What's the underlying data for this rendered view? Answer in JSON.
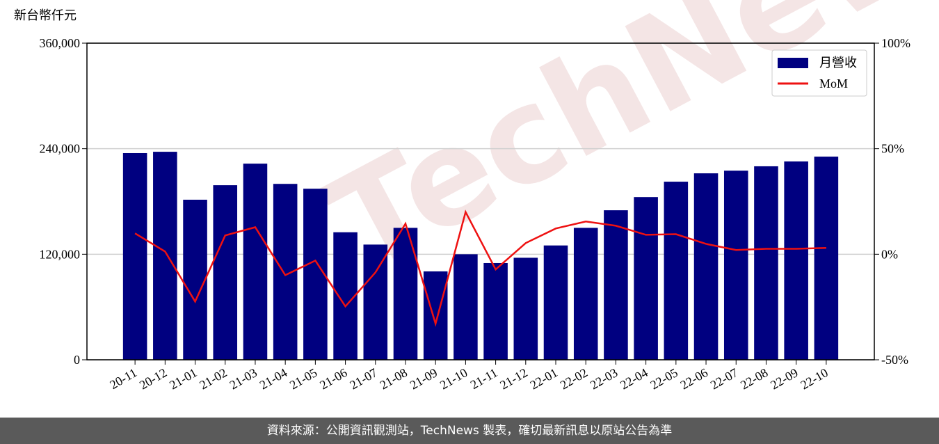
{
  "chart_data": {
    "type": "bar_line",
    "ylabel": "新台幣仟元",
    "watermark": "TechNews",
    "categories": [
      "20-11",
      "20-12",
      "21-01",
      "21-02",
      "21-03",
      "21-04",
      "21-05",
      "21-06",
      "21-07",
      "21-08",
      "21-09",
      "21-10",
      "21-11",
      "21-12",
      "22-01",
      "22-02",
      "22-03",
      "22-04",
      "22-05",
      "22-06",
      "22-07",
      "22-08",
      "22-09",
      "22-10"
    ],
    "series": [
      {
        "name": "月營收",
        "color": "#000080",
        "type": "bar",
        "values": [
          235000,
          236500,
          182000,
          198500,
          223000,
          200000,
          194500,
          145000,
          131000,
          150000,
          100500,
          120000,
          110000,
          116000,
          130000,
          150000,
          170000,
          185000,
          202500,
          212000,
          215000,
          220000,
          225500,
          231000
        ]
      },
      {
        "name": "MoM",
        "color": "#ee1111",
        "type": "line",
        "axis": "y2",
        "values": [
          9.9,
          1.3,
          -22.4,
          8.9,
          12.8,
          -9.9,
          -3,
          -24.7,
          -8.6,
          14.5,
          -32.9,
          20,
          -7.2,
          5.3,
          12.2,
          15.5,
          13.5,
          9.2,
          9.5,
          4.9,
          2,
          2.6,
          2.6,
          3
        ]
      }
    ],
    "ylim": [
      0,
      360000
    ],
    "yticks": [
      0,
      {
        "value": 120000,
        "label": "120,000"
      },
      {
        "value": 240000,
        "label": "240,000"
      },
      {
        "value": 360000,
        "label": "360,000"
      }
    ],
    "y2lim": [
      -50,
      100
    ],
    "y2ticks": [
      {
        "value": -50,
        "label": "-50%"
      },
      {
        "value": 0,
        "label": "0%"
      },
      {
        "value": 50,
        "label": "50%"
      },
      {
        "value": 100,
        "label": "100%"
      }
    ],
    "grid": true,
    "legend": "upper right",
    "footer": "資料來源：公開資訊觀測站，TechNews 製表，確切最新訊息以原站公告為準"
  }
}
